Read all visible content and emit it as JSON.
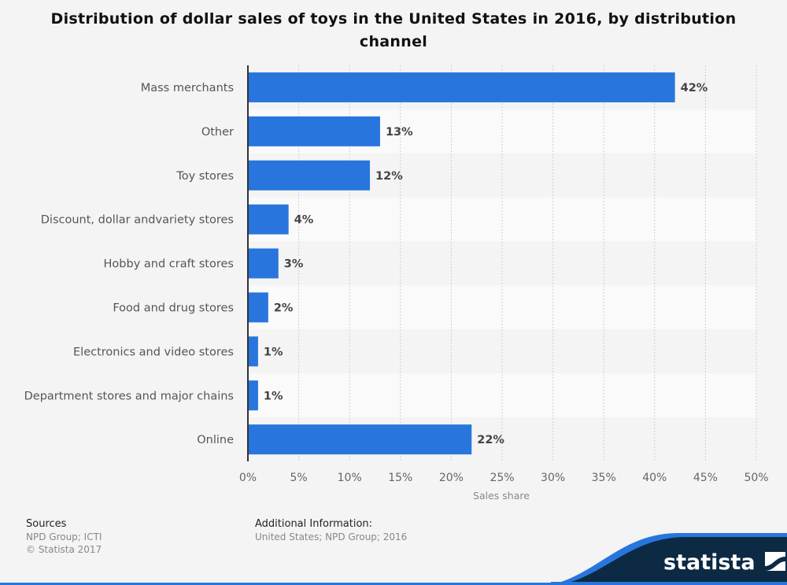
{
  "chart_data": {
    "type": "bar",
    "orientation": "horizontal",
    "title": "Distribution of dollar sales of toys in the United States in 2016, by distribution channel",
    "categories": [
      "Mass merchants",
      "Other",
      "Toy stores",
      "Discount, dollar andvariety stores",
      "Hobby and craft stores",
      "Food and drug stores",
      "Electronics and video stores",
      "Department stores and major chains",
      "Online"
    ],
    "values": [
      42,
      13,
      12,
      4,
      3,
      2,
      1,
      1,
      22
    ],
    "data_labels": [
      "42%",
      "13%",
      "12%",
      "4%",
      "3%",
      "2%",
      "1%",
      "1%",
      "22%"
    ],
    "xlabel": "Sales share",
    "xlim": [
      0,
      50
    ],
    "ticks": [
      "0%",
      "5%",
      "10%",
      "15%",
      "20%",
      "25%",
      "30%",
      "35%",
      "40%",
      "45%",
      "50%"
    ],
    "grid": true,
    "bar_color": "#2876dd"
  },
  "footer": {
    "sources_heading": "Sources",
    "sources": "NPD Group; ICTI",
    "copyright": "© Statista 2017",
    "info_heading": "Additional Information:",
    "info": "United States; NPD Group; 2016"
  },
  "logo": {
    "text": "statista",
    "bg": "#0c2a43",
    "accent": "#2876dd"
  }
}
